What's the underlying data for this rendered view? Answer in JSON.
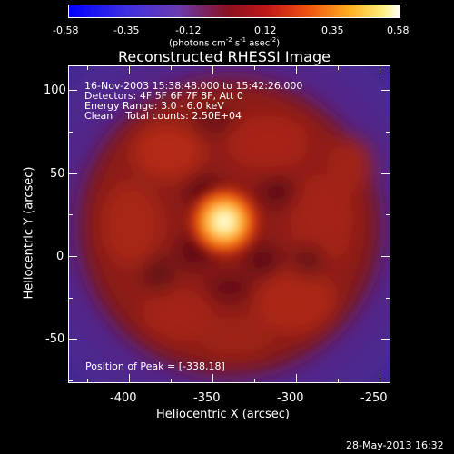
{
  "colorbar": {
    "ticks": [
      "-0.58",
      "-0.35",
      "-0.12",
      "0.12",
      "0.35",
      "0.58"
    ],
    "unit_label_text": "(photons cm",
    "unit_sup1": "-2",
    "unit_mid": " s",
    "unit_sup2": "-1",
    "unit_mid2": " asec",
    "unit_sup3": "-2",
    "unit_end": ")"
  },
  "title": "Reconstructed RHESSI Image",
  "axes": {
    "xlabel": "Heliocentric X (arcsec)",
    "ylabel": "Heliocentric Y (arcsec)",
    "xticks": [
      "-400",
      "-350",
      "-300",
      "-250"
    ],
    "yticks": [
      "100",
      "50",
      "0",
      "-50"
    ]
  },
  "info": {
    "line1": "16-Nov-2003 15:38:48.000 to 15:42:26.000",
    "line2": "Detectors: 4F 5F 6F 7F 8F, Att 0",
    "line3": "Energy Range: 3.0 - 6.0 keV",
    "line4": "Clean    Total counts: 2.50E+04"
  },
  "peak_label": "Position of Peak = [-338,18]",
  "timestamp": "28-May-2013 16:32",
  "colors": {
    "background": "#000000",
    "foreground": "#ffffff"
  },
  "chart_data": {
    "type": "heatmap",
    "title": "Reconstructed RHESSI Image",
    "xlabel": "Heliocentric X (arcsec)",
    "ylabel": "Heliocentric Y (arcsec)",
    "xlim": [
      -438,
      -245
    ],
    "ylim": [
      -82,
      112
    ],
    "colorbar_range": [
      -0.58,
      0.58
    ],
    "peak": {
      "x": -338,
      "y": 18
    }
  }
}
